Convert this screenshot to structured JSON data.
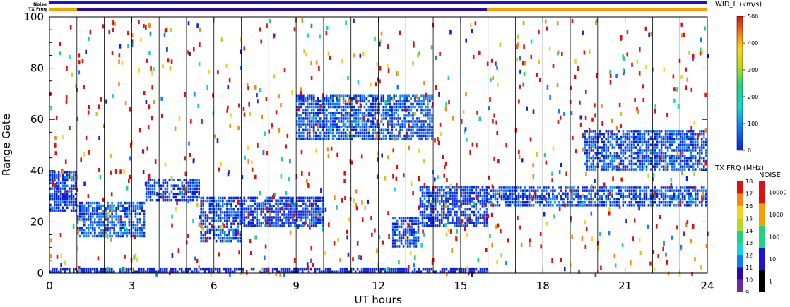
{
  "header": {
    "noise_label": "Noise",
    "txfreq_label": "TX Freq",
    "colors": {
      "noise_bar": "#1a12d8",
      "txfreq_bar": "#f5a000",
      "txfreq_dark_bar": "#2a0aa8"
    }
  },
  "chart_data": {
    "type": "heatmap",
    "title": "",
    "xlabel": "UT hours",
    "ylabel": "Range Gate",
    "xlim": [
      0,
      24
    ],
    "ylim": [
      0,
      100
    ],
    "xticks": [
      "0",
      "3",
      "6",
      "9",
      "12",
      "15",
      "18",
      "21",
      "24"
    ],
    "yticks": [
      "0",
      "20",
      "40",
      "60",
      "80",
      "100"
    ],
    "scan_boundaries_hours": [
      1,
      2,
      3,
      4,
      5,
      6,
      7,
      8,
      9,
      10,
      11,
      12,
      13,
      14,
      15,
      16,
      17,
      18,
      19,
      20,
      21,
      22,
      23
    ],
    "parameter": "WID_L (km/s)",
    "colorbar": {
      "label": "WID_L (km/s)",
      "range": [
        0,
        500
      ],
      "ticks": [
        "0",
        "100",
        "200",
        "300",
        "400",
        "500"
      ]
    },
    "txfreq_scale": {
      "label": "TX FRQ (MHz)",
      "ticks": [
        "9",
        "10",
        "11",
        "12",
        "13",
        "14",
        "15",
        "16",
        "17",
        "18"
      ]
    },
    "noise_scale": {
      "label": "NOISE",
      "ticks": [
        "1",
        "10",
        "100",
        "1000",
        "10000"
      ]
    },
    "echo_regions": [
      {
        "t0": 0.0,
        "t1": 1.0,
        "g0": 24,
        "g1": 40,
        "w": 60
      },
      {
        "t0": 1.0,
        "t1": 3.5,
        "g0": 14,
        "g1": 28,
        "w": 80
      },
      {
        "t0": 3.5,
        "t1": 5.5,
        "g0": 28,
        "g1": 37,
        "w": 60
      },
      {
        "t0": 5.5,
        "t1": 7.0,
        "g0": 12,
        "g1": 30,
        "w": 70
      },
      {
        "t0": 7.0,
        "t1": 10.0,
        "g0": 18,
        "g1": 30,
        "w": 60
      },
      {
        "t0": 9.0,
        "t1": 14.0,
        "g0": 52,
        "g1": 70,
        "w": 80
      },
      {
        "t0": 12.5,
        "t1": 13.5,
        "g0": 10,
        "g1": 22,
        "w": 70
      },
      {
        "t0": 13.5,
        "t1": 16.0,
        "g0": 18,
        "g1": 34,
        "w": 60
      },
      {
        "t0": 0.0,
        "t1": 16.0,
        "g0": 0,
        "g1": 2,
        "w": 50
      },
      {
        "t0": 19.5,
        "t1": 24.0,
        "g0": 40,
        "g1": 56,
        "w": 70
      },
      {
        "t0": 16.0,
        "t1": 24.0,
        "g0": 26,
        "g1": 34,
        "w": 70
      }
    ]
  }
}
